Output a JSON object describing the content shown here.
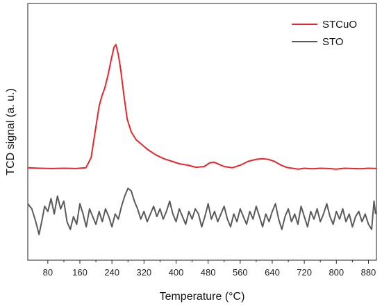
{
  "chart_data": {
    "type": "line",
    "title": "",
    "xlabel": "Temperature (°C)",
    "ylabel": "TCD signal (a. u.)",
    "xlim": [
      30,
      900
    ],
    "ylim": [
      0,
      1
    ],
    "x_ticks": [
      80,
      160,
      240,
      320,
      400,
      480,
      560,
      640,
      720,
      800,
      880
    ],
    "x_tick_labels": [
      "80",
      "160",
      "240",
      "320",
      "400",
      "480",
      "560",
      "640",
      "720",
      "800",
      "880"
    ],
    "y_ticks_shown": false,
    "grid": false,
    "legend_position": "top-right",
    "series": [
      {
        "name": "STCuO",
        "color": "#e8262a",
        "x": [
          30,
          60,
          90,
          120,
          150,
          175,
          188,
          198,
          208,
          215,
          222,
          230,
          238,
          245,
          250,
          256,
          262,
          270,
          278,
          288,
          300,
          315,
          330,
          350,
          370,
          390,
          410,
          430,
          450,
          470,
          485,
          495,
          505,
          520,
          540,
          560,
          580,
          600,
          615,
          630,
          645,
          660,
          675,
          690,
          705,
          720,
          740,
          760,
          780,
          800,
          820,
          840,
          860,
          880,
          900
        ],
        "y": [
          0.36,
          0.358,
          0.357,
          0.358,
          0.357,
          0.36,
          0.4,
          0.5,
          0.6,
          0.64,
          0.67,
          0.72,
          0.78,
          0.83,
          0.84,
          0.8,
          0.74,
          0.64,
          0.55,
          0.5,
          0.47,
          0.45,
          0.43,
          0.41,
          0.395,
          0.385,
          0.375,
          0.37,
          0.362,
          0.365,
          0.38,
          0.382,
          0.375,
          0.365,
          0.36,
          0.37,
          0.385,
          0.393,
          0.395,
          0.393,
          0.385,
          0.372,
          0.362,
          0.358,
          0.355,
          0.358,
          0.356,
          0.358,
          0.357,
          0.355,
          0.358,
          0.357,
          0.356,
          0.358,
          0.357
        ]
      },
      {
        "name": "STO",
        "color": "#5a5a5a",
        "x": [
          30,
          40,
          50,
          58,
          66,
          72,
          80,
          88,
          96,
          104,
          112,
          120,
          128,
          136,
          144,
          152,
          160,
          168,
          176,
          184,
          192,
          200,
          208,
          216,
          224,
          232,
          240,
          248,
          256,
          264,
          272,
          280,
          288,
          296,
          304,
          312,
          320,
          328,
          336,
          344,
          352,
          360,
          368,
          376,
          384,
          392,
          400,
          408,
          416,
          424,
          432,
          440,
          448,
          456,
          464,
          472,
          480,
          488,
          496,
          504,
          512,
          520,
          528,
          536,
          544,
          552,
          560,
          568,
          576,
          584,
          592,
          600,
          608,
          616,
          624,
          632,
          640,
          648,
          656,
          664,
          672,
          680,
          688,
          696,
          704,
          712,
          720,
          728,
          736,
          744,
          752,
          760,
          768,
          776,
          784,
          792,
          800,
          808,
          816,
          824,
          832,
          840,
          848,
          856,
          864,
          872,
          880,
          888,
          894,
          898
        ],
        "y": [
          0.22,
          0.2,
          0.15,
          0.1,
          0.16,
          0.21,
          0.19,
          0.24,
          0.18,
          0.25,
          0.2,
          0.23,
          0.15,
          0.12,
          0.17,
          0.14,
          0.22,
          0.18,
          0.13,
          0.2,
          0.17,
          0.14,
          0.19,
          0.15,
          0.2,
          0.17,
          0.13,
          0.18,
          0.16,
          0.21,
          0.25,
          0.28,
          0.27,
          0.23,
          0.2,
          0.16,
          0.19,
          0.15,
          0.18,
          0.21,
          0.17,
          0.2,
          0.16,
          0.19,
          0.23,
          0.18,
          0.15,
          0.2,
          0.17,
          0.14,
          0.19,
          0.16,
          0.2,
          0.18,
          0.13,
          0.17,
          0.22,
          0.16,
          0.19,
          0.15,
          0.18,
          0.21,
          0.16,
          0.13,
          0.18,
          0.15,
          0.2,
          0.17,
          0.14,
          0.19,
          0.16,
          0.21,
          0.17,
          0.13,
          0.18,
          0.15,
          0.19,
          0.22,
          0.16,
          0.12,
          0.17,
          0.2,
          0.15,
          0.18,
          0.14,
          0.21,
          0.17,
          0.13,
          0.19,
          0.16,
          0.2,
          0.15,
          0.18,
          0.22,
          0.17,
          0.14,
          0.19,
          0.16,
          0.2,
          0.15,
          0.18,
          0.13,
          0.17,
          0.19,
          0.15,
          0.18,
          0.14,
          0.12,
          0.23,
          0.18
        ]
      }
    ]
  }
}
